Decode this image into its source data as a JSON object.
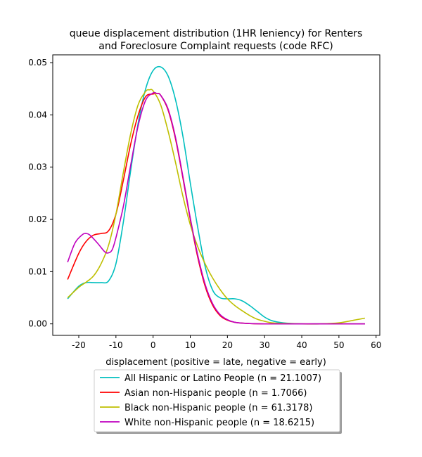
{
  "chart_data": {
    "type": "line",
    "title_line1": "queue displacement distribution (1HR leniency) for Renters",
    "title_line2": "and Foreclosure Complaint  requests (code RFC)",
    "xlabel": "displacement (positive = late, negative = early)",
    "ylabel": "",
    "xlim": [
      -27,
      61
    ],
    "ylim": [
      -0.0022,
      0.0515
    ],
    "xticks": [
      -20,
      -10,
      0,
      10,
      20,
      30,
      40,
      50,
      60
    ],
    "yticks": [
      0.0,
      0.01,
      0.02,
      0.03,
      0.04,
      0.05
    ],
    "ytick_labels": [
      "0.00",
      "0.01",
      "0.02",
      "0.03",
      "0.04",
      "0.05"
    ],
    "grid": false,
    "legend_position": "bottom-center",
    "series": [
      {
        "name": "All Hispanic or Latino People (n = 21.1007)",
        "color": "#00bfbf",
        "x": [
          -23,
          -20,
          -18,
          -16,
          -14,
          -12,
          -10,
          -8,
          -6,
          -4,
          -2,
          0,
          2,
          4,
          6,
          8,
          10,
          12,
          14,
          16,
          18,
          20,
          22,
          24,
          26,
          28,
          30,
          32,
          35,
          40,
          45,
          50,
          57
        ],
        "y": [
          0.0048,
          0.0072,
          0.0079,
          0.0079,
          0.0079,
          0.0082,
          0.0115,
          0.0195,
          0.0295,
          0.0385,
          0.045,
          0.0485,
          0.0492,
          0.0475,
          0.043,
          0.036,
          0.027,
          0.0185,
          0.011,
          0.0065,
          0.005,
          0.0048,
          0.0048,
          0.0044,
          0.0035,
          0.0024,
          0.0013,
          0.0006,
          0.0002,
          0.0,
          0.0,
          0.0,
          0.0
        ]
      },
      {
        "name": "Asian non-Hispanic people (n = 1.7066)",
        "color": "#ff0000",
        "x": [
          -23,
          -20,
          -18,
          -16,
          -14,
          -12,
          -10,
          -8,
          -6,
          -4,
          -2,
          0,
          1,
          2,
          4,
          6,
          8,
          10,
          12,
          14,
          16,
          18,
          20,
          22,
          25,
          30,
          35,
          40,
          45,
          50,
          57
        ],
        "y": [
          0.0085,
          0.0135,
          0.0158,
          0.017,
          0.0173,
          0.0178,
          0.021,
          0.0275,
          0.0345,
          0.04,
          0.0435,
          0.044,
          0.0441,
          0.0438,
          0.041,
          0.0355,
          0.028,
          0.02,
          0.0128,
          0.0072,
          0.0036,
          0.0016,
          0.0007,
          0.0003,
          0.0001,
          0.0,
          0.0,
          0.0,
          0.0,
          0.0,
          0.0
        ]
      },
      {
        "name": "Black non-Hispanic people (n = 61.3178)",
        "color": "#bfbf00",
        "x": [
          -23,
          -20,
          -18,
          -16,
          -14,
          -12,
          -10,
          -8,
          -6,
          -4,
          -2,
          -1,
          0,
          2,
          4,
          6,
          8,
          10,
          12,
          14,
          16,
          18,
          20,
          22,
          24,
          26,
          28,
          30,
          32,
          35,
          40,
          45,
          50,
          54,
          57
        ],
        "y": [
          0.005,
          0.007,
          0.008,
          0.0092,
          0.0115,
          0.015,
          0.021,
          0.029,
          0.0365,
          0.042,
          0.0445,
          0.0448,
          0.0446,
          0.042,
          0.037,
          0.031,
          0.0245,
          0.019,
          0.0148,
          0.0115,
          0.0088,
          0.0066,
          0.0048,
          0.0035,
          0.0025,
          0.0016,
          0.0009,
          0.0005,
          0.0002,
          0.0001,
          0.0,
          0.0,
          0.0002,
          0.0007,
          0.0011
        ]
      },
      {
        "name": "White non-Hispanic people (n = 18.6215)",
        "color": "#bf00bf",
        "x": [
          -23,
          -21,
          -19,
          -18,
          -17,
          -15,
          -13,
          -12,
          -11,
          -10,
          -8,
          -6,
          -4,
          -2,
          0,
          1,
          2,
          4,
          6,
          8,
          10,
          12,
          14,
          16,
          18,
          20,
          22,
          25,
          30,
          35,
          40,
          45,
          50,
          57
        ],
        "y": [
          0.0118,
          0.0155,
          0.0171,
          0.0173,
          0.017,
          0.0155,
          0.0138,
          0.0136,
          0.0142,
          0.0165,
          0.0225,
          0.0305,
          0.038,
          0.0428,
          0.0442,
          0.0441,
          0.0438,
          0.0412,
          0.0358,
          0.0283,
          0.0203,
          0.0132,
          0.0076,
          0.0039,
          0.0018,
          0.0008,
          0.0003,
          0.0001,
          0.0,
          0.0,
          0.0,
          0.0,
          0.0,
          0.0
        ]
      }
    ]
  }
}
